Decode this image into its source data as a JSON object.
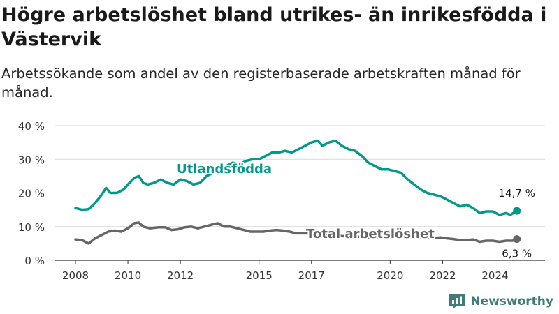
{
  "title": "Högre arbetslöshet bland utrikes- än inrikesfödda i Västervik",
  "subtitle": "Arbetssökande som andel av den registerbaserade arbetskraften månad för månad.",
  "brand": {
    "name": "Newsworthy",
    "color": "#3f7d78"
  },
  "chart_data": {
    "type": "line",
    "x_ticks": [
      "2008",
      "2010",
      "2012",
      "2015",
      "2017",
      "2020",
      "2022",
      "2024"
    ],
    "y_ticks": [
      "0 %",
      "10 %",
      "20 %",
      "30 %",
      "40 %"
    ],
    "ylim": [
      0,
      40
    ],
    "xlim": [
      "2008-01",
      "2025-01"
    ],
    "grid": true,
    "series": [
      {
        "name": "Utlandsfödda",
        "color": "#00998a",
        "last_label": "14,7 %",
        "points": [
          [
            "2008-01",
            15.5
          ],
          [
            "2008-04",
            15
          ],
          [
            "2008-07",
            15.2
          ],
          [
            "2008-10",
            17
          ],
          [
            "2009-01",
            19.5
          ],
          [
            "2009-03",
            21.5
          ],
          [
            "2009-05",
            20
          ],
          [
            "2009-08",
            20
          ],
          [
            "2009-11",
            21
          ],
          [
            "2010-01",
            22.5
          ],
          [
            "2010-04",
            24.5
          ],
          [
            "2010-06",
            25
          ],
          [
            "2010-08",
            23
          ],
          [
            "2010-10",
            22.5
          ],
          [
            "2011-01",
            23
          ],
          [
            "2011-04",
            24
          ],
          [
            "2011-07",
            23
          ],
          [
            "2011-10",
            22.5
          ],
          [
            "2012-01",
            24
          ],
          [
            "2012-04",
            23.5
          ],
          [
            "2012-07",
            22.5
          ],
          [
            "2012-10",
            23
          ],
          [
            "2013-01",
            25
          ],
          [
            "2013-04",
            26
          ],
          [
            "2013-07",
            26.5
          ],
          [
            "2013-10",
            28
          ],
          [
            "2014-01",
            29
          ],
          [
            "2014-04",
            28.5
          ],
          [
            "2014-07",
            29.5
          ],
          [
            "2014-10",
            30
          ],
          [
            "2015-01",
            30
          ],
          [
            "2015-04",
            31
          ],
          [
            "2015-07",
            32
          ],
          [
            "2015-10",
            32
          ],
          [
            "2016-01",
            32.5
          ],
          [
            "2016-04",
            32
          ],
          [
            "2016-07",
            33
          ],
          [
            "2016-10",
            34
          ],
          [
            "2017-01",
            35
          ],
          [
            "2017-04",
            35.5
          ],
          [
            "2017-06",
            34
          ],
          [
            "2017-09",
            35
          ],
          [
            "2017-12",
            35.5
          ],
          [
            "2018-03",
            34
          ],
          [
            "2018-06",
            33
          ],
          [
            "2018-09",
            32.5
          ],
          [
            "2018-12",
            31
          ],
          [
            "2019-03",
            29
          ],
          [
            "2019-06",
            28
          ],
          [
            "2019-09",
            27
          ],
          [
            "2019-12",
            27
          ],
          [
            "2020-03",
            26.5
          ],
          [
            "2020-06",
            26
          ],
          [
            "2020-09",
            24
          ],
          [
            "2020-12",
            22.5
          ],
          [
            "2021-03",
            21
          ],
          [
            "2021-06",
            20
          ],
          [
            "2021-09",
            19.5
          ],
          [
            "2021-12",
            19
          ],
          [
            "2022-03",
            18
          ],
          [
            "2022-06",
            17
          ],
          [
            "2022-09",
            16
          ],
          [
            "2022-12",
            16.5
          ],
          [
            "2023-03",
            15.5
          ],
          [
            "2023-06",
            14
          ],
          [
            "2023-09",
            14.5
          ],
          [
            "2023-12",
            14.5
          ],
          [
            "2024-03",
            13.5
          ],
          [
            "2024-06",
            14
          ],
          [
            "2024-08",
            13.5
          ],
          [
            "2024-11",
            14.7
          ]
        ]
      },
      {
        "name": "Total arbetslöshet",
        "color": "#666666",
        "last_label": "6,3 %",
        "points": [
          [
            "2008-01",
            6.2
          ],
          [
            "2008-04",
            6
          ],
          [
            "2008-07",
            5
          ],
          [
            "2008-10",
            6.5
          ],
          [
            "2009-01",
            7.5
          ],
          [
            "2009-04",
            8.5
          ],
          [
            "2009-07",
            8.8
          ],
          [
            "2009-10",
            8.5
          ],
          [
            "2010-01",
            9.5
          ],
          [
            "2010-04",
            11
          ],
          [
            "2010-06",
            11.2
          ],
          [
            "2010-08",
            10
          ],
          [
            "2010-11",
            9.5
          ],
          [
            "2011-03",
            9.8
          ],
          [
            "2011-06",
            9.8
          ],
          [
            "2011-09",
            9
          ],
          [
            "2011-12",
            9.2
          ],
          [
            "2012-03",
            9.8
          ],
          [
            "2012-06",
            10
          ],
          [
            "2012-09",
            9.5
          ],
          [
            "2012-12",
            10
          ],
          [
            "2013-03",
            10.5
          ],
          [
            "2013-06",
            11
          ],
          [
            "2013-09",
            10
          ],
          [
            "2013-12",
            10
          ],
          [
            "2014-03",
            9.5
          ],
          [
            "2014-06",
            9
          ],
          [
            "2014-09",
            8.5
          ],
          [
            "2014-12",
            8.5
          ],
          [
            "2015-03",
            8.5
          ],
          [
            "2015-06",
            8.8
          ],
          [
            "2015-09",
            9
          ],
          [
            "2015-12",
            8.8
          ],
          [
            "2016-03",
            8.5
          ],
          [
            "2016-06",
            8
          ],
          [
            "2016-09",
            8
          ],
          [
            "2016-12",
            8
          ],
          [
            "2017-03",
            8
          ],
          [
            "2017-06",
            7.5
          ],
          [
            "2017-09",
            7.5
          ],
          [
            "2017-12",
            7.5
          ],
          [
            "2018-03",
            7.2
          ],
          [
            "2018-06",
            7
          ],
          [
            "2018-09",
            7
          ],
          [
            "2018-12",
            7
          ],
          [
            "2019-03",
            6.8
          ],
          [
            "2019-06",
            6.8
          ],
          [
            "2019-09",
            6.9
          ],
          [
            "2019-12",
            6.9
          ],
          [
            "2020-03",
            7
          ],
          [
            "2020-06",
            7.2
          ],
          [
            "2020-09",
            7
          ],
          [
            "2020-12",
            6.8
          ],
          [
            "2021-03",
            6.6
          ],
          [
            "2021-06",
            6.6
          ],
          [
            "2021-09",
            6.6
          ],
          [
            "2021-12",
            6.8
          ],
          [
            "2022-03",
            6.5
          ],
          [
            "2022-06",
            6.3
          ],
          [
            "2022-09",
            6
          ],
          [
            "2022-12",
            6
          ],
          [
            "2023-03",
            6.2
          ],
          [
            "2023-06",
            5.5
          ],
          [
            "2023-09",
            5.8
          ],
          [
            "2023-12",
            5.8
          ],
          [
            "2024-03",
            5.5
          ],
          [
            "2024-06",
            5.8
          ],
          [
            "2024-09",
            5.8
          ],
          [
            "2024-11",
            6.3
          ]
        ]
      }
    ]
  }
}
